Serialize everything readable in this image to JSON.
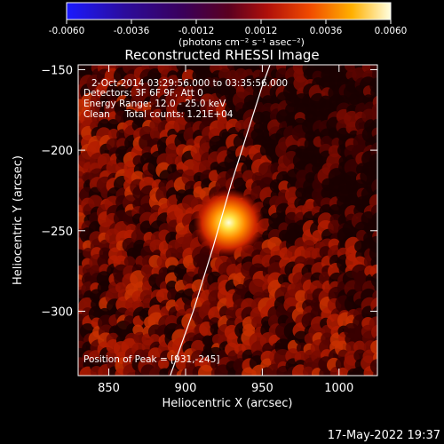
{
  "colorbar": {
    "ticks": [
      "-0.0060",
      "-0.0036",
      "-0.0012",
      "0.0012",
      "0.0036",
      "0.0060"
    ],
    "tick_values": [
      -0.006,
      -0.0036,
      -0.0012,
      0.0012,
      0.0036,
      0.006
    ],
    "units_label": "(photons cm⁻² s⁻¹ asec⁻²)",
    "range": [
      -0.006,
      0.006
    ]
  },
  "chart_data": {
    "type": "heatmap",
    "title": "Reconstructed RHESSI Image",
    "xlabel": "Heliocentric X (arcsec)",
    "ylabel": "Heliocentric Y (arcsec)",
    "xlim": [
      830,
      1025
    ],
    "ylim": [
      -340,
      -147
    ],
    "x_ticks": [
      850,
      900,
      950,
      1000
    ],
    "y_ticks": [
      -150,
      -200,
      -250,
      -300
    ],
    "x_tick_labels": [
      "850",
      "900",
      "950",
      "1000"
    ],
    "y_tick_labels": [
      "−150",
      "−200",
      "−250",
      "−300"
    ],
    "info_lines": [
      "2-Oct-2014 03:29:56.000 to 03:35:56.000",
      "Detectors: 3F 6F 9F, Att 0",
      "Energy Range: 12.0 - 25.0 keV",
      "Clean     Total counts: 1.21E+04"
    ],
    "peak_label": "Position of Peak = [931,-245]",
    "peak": {
      "x": 931,
      "y": -245
    },
    "limb_curve": [
      [
        890,
        -340
      ],
      [
        905,
        -300
      ],
      [
        918,
        -260
      ],
      [
        930,
        -220
      ],
      [
        950,
        -160
      ],
      [
        955,
        -147
      ]
    ],
    "colormap": "hot"
  },
  "timestamp": "17-May-2022 19:37"
}
